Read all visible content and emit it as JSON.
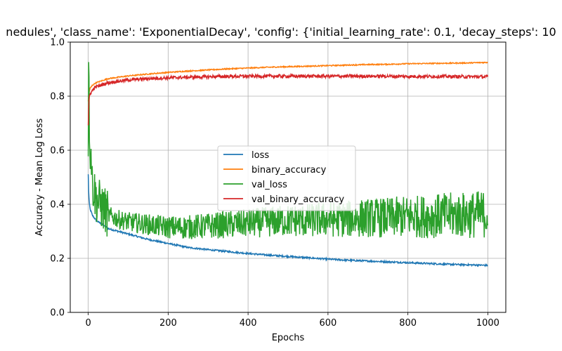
{
  "chart_data": {
    "type": "line",
    "title": "nedules', 'class_name': 'ExponentialDecay', 'config': {'initial_learning_rate': 0.1, 'decay_steps': 10",
    "xlabel": "Epochs",
    "ylabel": "Accuracy - Mean Log Loss",
    "xlim": [
      -45,
      1045
    ],
    "ylim": [
      0.0,
      1.0
    ],
    "xticks": [
      0,
      200,
      400,
      600,
      800,
      1000
    ],
    "yticks": [
      0.0,
      0.2,
      0.4,
      0.6,
      0.8,
      1.0
    ],
    "xtick_labels": [
      "0",
      "200",
      "400",
      "600",
      "800",
      "1000"
    ],
    "ytick_labels": [
      "0.0",
      "0.2",
      "0.4",
      "0.6",
      "0.8",
      "1.0"
    ],
    "grid": true,
    "legend_position": "center",
    "x": [
      0,
      1,
      2,
      3,
      5,
      8,
      10,
      15,
      20,
      30,
      40,
      50,
      75,
      100,
      150,
      200,
      250,
      300,
      350,
      400,
      450,
      500,
      550,
      600,
      650,
      700,
      750,
      800,
      850,
      900,
      950,
      1000
    ],
    "series": [
      {
        "name": "loss",
        "color": "#1f77b4",
        "noise": 0.003,
        "values": [
          0.51,
          0.45,
          0.42,
          0.4,
          0.38,
          0.37,
          0.36,
          0.35,
          0.34,
          0.33,
          0.32,
          0.31,
          0.3,
          0.29,
          0.27,
          0.255,
          0.24,
          0.232,
          0.225,
          0.218,
          0.212,
          0.207,
          0.202,
          0.197,
          0.193,
          0.19,
          0.187,
          0.184,
          0.181,
          0.178,
          0.176,
          0.174
        ]
      },
      {
        "name": "binary_accuracy",
        "color": "#ff7f0e",
        "noise": 0.002,
        "values": [
          0.78,
          0.8,
          0.81,
          0.82,
          0.83,
          0.835,
          0.84,
          0.845,
          0.85,
          0.855,
          0.86,
          0.865,
          0.87,
          0.875,
          0.882,
          0.888,
          0.893,
          0.897,
          0.901,
          0.904,
          0.907,
          0.909,
          0.911,
          0.913,
          0.915,
          0.917,
          0.918,
          0.92,
          0.921,
          0.922,
          0.923,
          0.925
        ]
      },
      {
        "name": "val_loss",
        "color": "#2ca02c",
        "noise": 0.03,
        "values": [
          0.62,
          1.0,
          0.8,
          0.7,
          0.6,
          0.58,
          0.48,
          0.45,
          0.42,
          0.4,
          0.38,
          0.36,
          0.345,
          0.335,
          0.325,
          0.315,
          0.315,
          0.32,
          0.325,
          0.33,
          0.335,
          0.34,
          0.34,
          0.345,
          0.345,
          0.35,
          0.35,
          0.355,
          0.355,
          0.36,
          0.36,
          0.365
        ]
      },
      {
        "name": "val_binary_accuracy",
        "color": "#d62728",
        "noise": 0.006,
        "values": [
          0.69,
          0.75,
          0.78,
          0.8,
          0.81,
          0.815,
          0.82,
          0.83,
          0.835,
          0.84,
          0.845,
          0.85,
          0.855,
          0.86,
          0.865,
          0.868,
          0.87,
          0.872,
          0.873,
          0.874,
          0.874,
          0.874,
          0.874,
          0.874,
          0.874,
          0.874,
          0.874,
          0.873,
          0.873,
          0.873,
          0.872,
          0.872
        ]
      }
    ]
  }
}
